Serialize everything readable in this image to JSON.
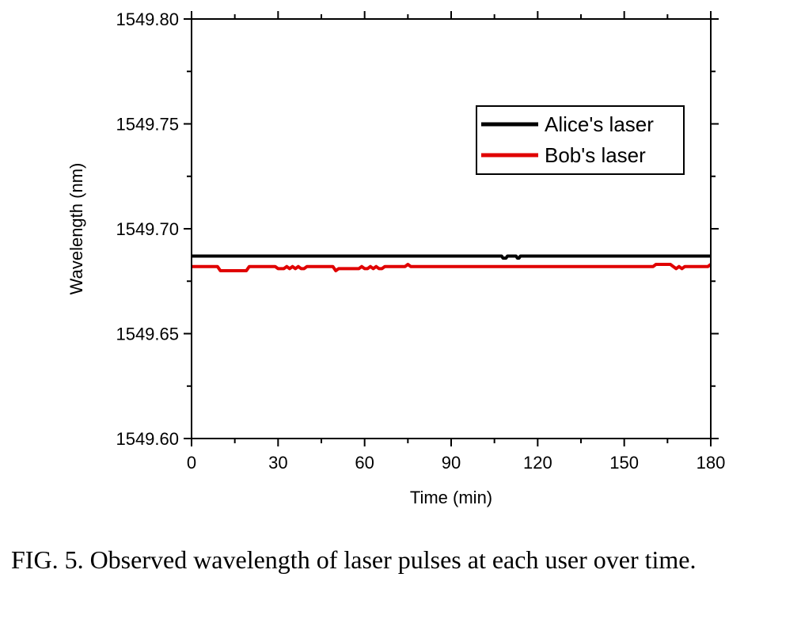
{
  "chart_data": {
    "type": "line",
    "xlabel": "Time (min)",
    "ylabel": "Wavelength (nm)",
    "xlim": [
      0,
      180
    ],
    "ylim": [
      1549.6,
      1549.8
    ],
    "xticks": [
      "0",
      "30",
      "60",
      "90",
      "120",
      "150",
      "180"
    ],
    "yticks": [
      "1549.60",
      "1549.65",
      "1549.70",
      "1549.75",
      "1549.80"
    ],
    "xtick_values": [
      0,
      30,
      60,
      90,
      120,
      150,
      180
    ],
    "ytick_values": [
      1549.6,
      1549.65,
      1549.7,
      1549.75,
      1549.8
    ],
    "grid": false,
    "legend_position": "upper-right",
    "series": [
      {
        "name": "Alice's laser",
        "color": "#000000",
        "x": [
          0,
          107.5,
          108,
          108.5,
          109,
          109.5,
          110,
          112.5,
          113,
          113.5,
          114,
          114.5,
          180
        ],
        "y": [
          1549.687,
          1549.687,
          1549.686,
          1549.686,
          1549.686,
          1549.687,
          1549.687,
          1549.687,
          1549.686,
          1549.686,
          1549.687,
          1549.687,
          1549.687
        ]
      },
      {
        "name": "Bob's laser",
        "color": "#e00000",
        "x": [
          0,
          9,
          10,
          19,
          20,
          29,
          30,
          32,
          33,
          34,
          35,
          36,
          37,
          38,
          39,
          40,
          49,
          50,
          51,
          52,
          58,
          59,
          60,
          61,
          62,
          63,
          64,
          65,
          66,
          67,
          68,
          74,
          75,
          76,
          160,
          161,
          166,
          167,
          168,
          169,
          170,
          171,
          179,
          180
        ],
        "y": [
          1549.682,
          1549.682,
          1549.68,
          1549.68,
          1549.682,
          1549.682,
          1549.681,
          1549.681,
          1549.682,
          1549.681,
          1549.682,
          1549.681,
          1549.682,
          1549.681,
          1549.681,
          1549.682,
          1549.682,
          1549.68,
          1549.681,
          1549.681,
          1549.681,
          1549.682,
          1549.681,
          1549.681,
          1549.682,
          1549.681,
          1549.682,
          1549.681,
          1549.681,
          1549.682,
          1549.682,
          1549.682,
          1549.683,
          1549.682,
          1549.682,
          1549.683,
          1549.683,
          1549.682,
          1549.681,
          1549.682,
          1549.681,
          1549.682,
          1549.682,
          1549.683
        ]
      }
    ]
  },
  "caption": "FIG. 5.  Observed wavelength of laser pulses at each user over time."
}
